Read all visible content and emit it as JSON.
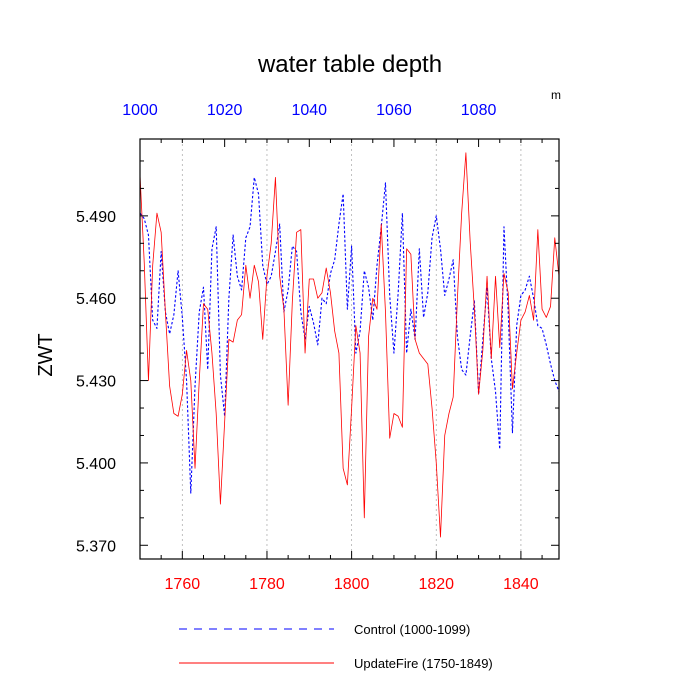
{
  "chart_data": {
    "type": "line",
    "title": "water table depth",
    "units": "m",
    "ylabel": "ZWT",
    "ylim": [
      5.365,
      5.518
    ],
    "y_ticks": [
      5.37,
      5.4,
      5.43,
      5.46,
      5.49
    ],
    "y_tick_labels": [
      "5.370",
      "5.400",
      "5.430",
      "5.460",
      "5.490"
    ],
    "bottom_axis": {
      "range": [
        1750,
        1849
      ],
      "ticks": [
        1760,
        1780,
        1800,
        1820,
        1840
      ],
      "tick_labels": [
        "1760",
        "1780",
        "1800",
        "1820",
        "1840"
      ],
      "color": "#ff0000"
    },
    "top_axis": {
      "range": [
        1000,
        1099
      ],
      "ticks": [
        1000,
        1020,
        1040,
        1060,
        1080
      ],
      "tick_labels": [
        "1000",
        "1020",
        "1040",
        "1060",
        "1080"
      ],
      "color": "#0000ff"
    },
    "grid": "vertical-dotted",
    "legend_placement": "bottom",
    "series": [
      {
        "name": "Control (1000-1099)",
        "axis": "top",
        "style": "dashed",
        "color": "#0000ff",
        "x_start": 1000,
        "values": [
          5.491,
          5.489,
          5.483,
          5.452,
          5.449,
          5.477,
          5.455,
          5.447,
          5.454,
          5.47,
          5.453,
          5.43,
          5.389,
          5.428,
          5.455,
          5.464,
          5.434,
          5.478,
          5.486,
          5.432,
          5.417,
          5.46,
          5.483,
          5.468,
          5.463,
          5.482,
          5.486,
          5.504,
          5.498,
          5.472,
          5.465,
          5.468,
          5.477,
          5.487,
          5.455,
          5.463,
          5.479,
          5.477,
          5.455,
          5.445,
          5.457,
          5.451,
          5.443,
          5.46,
          5.458,
          5.469,
          5.474,
          5.487,
          5.498,
          5.456,
          5.479,
          5.44,
          5.448,
          5.47,
          5.464,
          5.452,
          5.472,
          5.486,
          5.502,
          5.461,
          5.44,
          5.462,
          5.491,
          5.44,
          5.456,
          5.445,
          5.478,
          5.453,
          5.462,
          5.482,
          5.49,
          5.478,
          5.461,
          5.467,
          5.474,
          5.446,
          5.434,
          5.432,
          5.446,
          5.459,
          5.425,
          5.445,
          5.464,
          5.438,
          5.426,
          5.405,
          5.486,
          5.455,
          5.411,
          5.45,
          5.461,
          5.463,
          5.468,
          5.46,
          5.45,
          5.449,
          5.443,
          5.436,
          5.43,
          5.426
        ]
      },
      {
        "name": "UpdateFire (1750-1849)",
        "axis": "bottom",
        "style": "solid",
        "color": "#ff0000",
        "x_start": 1750,
        "values": [
          5.505,
          5.473,
          5.43,
          5.472,
          5.491,
          5.484,
          5.455,
          5.428,
          5.418,
          5.417,
          5.425,
          5.441,
          5.43,
          5.398,
          5.43,
          5.458,
          5.456,
          5.44,
          5.418,
          5.385,
          5.415,
          5.445,
          5.444,
          5.452,
          5.454,
          5.472,
          5.46,
          5.472,
          5.466,
          5.445,
          5.468,
          5.48,
          5.504,
          5.468,
          5.456,
          5.421,
          5.459,
          5.484,
          5.485,
          5.44,
          5.467,
          5.467,
          5.46,
          5.462,
          5.471,
          5.462,
          5.448,
          5.44,
          5.398,
          5.392,
          5.42,
          5.45,
          5.44,
          5.38,
          5.446,
          5.46,
          5.456,
          5.487,
          5.455,
          5.409,
          5.418,
          5.417,
          5.413,
          5.478,
          5.476,
          5.445,
          5.44,
          5.438,
          5.436,
          5.42,
          5.4,
          5.373,
          5.41,
          5.418,
          5.424,
          5.46,
          5.491,
          5.513,
          5.481,
          5.456,
          5.425,
          5.441,
          5.468,
          5.438,
          5.468,
          5.442,
          5.469,
          5.462,
          5.427,
          5.44,
          5.452,
          5.455,
          5.461,
          5.452,
          5.485,
          5.456,
          5.453,
          5.457,
          5.482,
          5.468
        ]
      }
    ]
  }
}
